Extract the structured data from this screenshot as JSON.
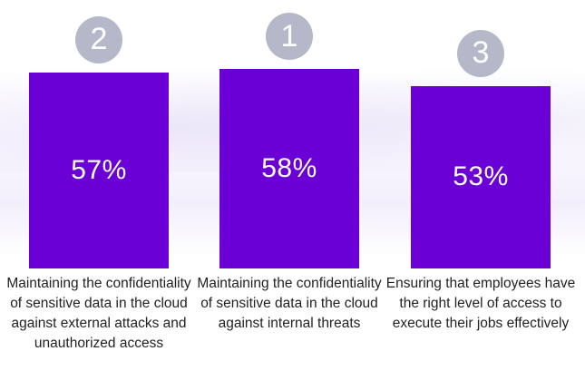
{
  "chart_data": {
    "type": "bar",
    "categories": [
      "Maintaining the confidentiality of sensitive data in the cloud against external attacks and unauthorized access",
      "Maintaining the confidentiality of sensitive data in the cloud against internal threats",
      "Ensuring that employees have the right level of access to execute their jobs effectively"
    ],
    "values": [
      57,
      58,
      53
    ],
    "value_labels": [
      "57%",
      "58%",
      "53%"
    ],
    "ranks": [
      "2",
      "1",
      "3"
    ],
    "bar_color": "#6b00d6",
    "rank_badge_color": "#b4b8c8",
    "grid": false
  }
}
